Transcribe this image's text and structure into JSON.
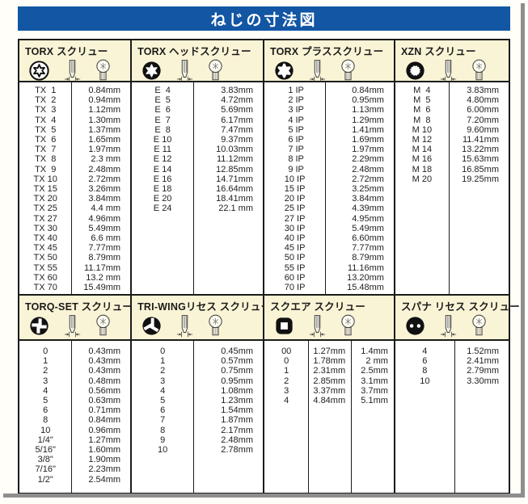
{
  "page": {
    "title": "ねじの寸法図"
  },
  "colors": {
    "banner_blue": "#1256a4",
    "header_cream": "#faf4d6",
    "border": "#1b1b1b",
    "unit": "mm"
  },
  "panels": {
    "torx": {
      "title": "TORX スクリュー",
      "icons": [
        "torx-recess-face-icon",
        "screw-side-view-icon",
        "screw-head-view-icon"
      ],
      "rows": [
        [
          "TX  1",
          "0.84mm"
        ],
        [
          "TX  2",
          "0.94mm"
        ],
        [
          "TX  3",
          "1.12mm"
        ],
        [
          "TX  4",
          "1.30mm"
        ],
        [
          "TX  5",
          "1.37mm"
        ],
        [
          "TX  6",
          "1.65mm"
        ],
        [
          "TX  7",
          "1.97mm"
        ],
        [
          "TX  8",
          "2.3 mm"
        ],
        [
          "TX  9",
          "2.48mm"
        ],
        [
          "TX 10",
          "2.72mm"
        ],
        [
          "TX 15",
          "3.26mm"
        ],
        [
          "TX 20",
          "3.84mm"
        ],
        [
          "TX 25",
          "4.4 mm"
        ],
        [
          "TX 27",
          "4.96mm"
        ],
        [
          "TX 30",
          "5.49mm"
        ],
        [
          "TX 40",
          "6.6 mm"
        ],
        [
          "TX 45",
          "7.77mm"
        ],
        [
          "TX 50",
          "8.79mm"
        ],
        [
          "TX 55",
          "11.17mm"
        ],
        [
          "TX 60",
          "13.2 mm"
        ],
        [
          "TX 70",
          "15.49mm"
        ]
      ]
    },
    "torx_head": {
      "title": "TORX ヘッドスクリュー",
      "icons": [
        "torx-socket-face-icon",
        "screw-side-view-icon",
        "screw-head-view-icon"
      ],
      "rows": [
        [
          "E  4",
          "3.83mm"
        ],
        [
          "E  5",
          "4.72mm"
        ],
        [
          "E  6",
          "5.69mm"
        ],
        [
          "E  7",
          "6.17mm"
        ],
        [
          "E  8",
          "7.47mm"
        ],
        [
          "E 10",
          "9.37mm"
        ],
        [
          "E 11",
          "10.03mm"
        ],
        [
          "E 12",
          "11.12mm"
        ],
        [
          "E 14",
          "12.85mm"
        ],
        [
          "E 16",
          "14.71mm"
        ],
        [
          "E 18",
          "16.64mm"
        ],
        [
          "E 20",
          "18.41mm"
        ],
        [
          "E 24",
          "22.1 mm"
        ]
      ]
    },
    "torx_plus": {
      "title": "TORX プラススクリュー",
      "icons": [
        "torx-plus-face-icon",
        "screw-side-view-icon",
        "screw-head-view-icon"
      ],
      "rows": [
        [
          " 1 IP",
          "0.84mm"
        ],
        [
          " 2 IP",
          "0.95mm"
        ],
        [
          " 3 IP",
          "1.13mm"
        ],
        [
          " 4 IP",
          "1.29mm"
        ],
        [
          " 5 IP",
          "1.41mm"
        ],
        [
          " 6 IP",
          "1.69mm"
        ],
        [
          " 7 IP",
          "1.97mm"
        ],
        [
          " 8 IP",
          "2.29mm"
        ],
        [
          " 9 IP",
          "2.48mm"
        ],
        [
          "10 IP",
          "2.72mm"
        ],
        [
          "15 IP",
          "3.25mm"
        ],
        [
          "20 IP",
          "3.84mm"
        ],
        [
          "25 IP",
          "4.39mm"
        ],
        [
          "27 IP",
          "4.95mm"
        ],
        [
          "30 IP",
          "5.49mm"
        ],
        [
          "40 IP",
          "6.60mm"
        ],
        [
          "45 IP",
          "7.77mm"
        ],
        [
          "50 IP",
          "8.79mm"
        ],
        [
          "55 IP",
          "11.16mm"
        ],
        [
          "60 IP",
          "13.20mm"
        ],
        [
          "70 IP",
          "15.48mm"
        ]
      ]
    },
    "xzn": {
      "title": "XZN スクリュー",
      "icons": [
        "xzn-spline-face-icon",
        "screw-side-view-icon",
        "screw-head-view-icon"
      ],
      "rows": [
        [
          "M  4",
          "3.83mm"
        ],
        [
          "M  5",
          "4.80mm"
        ],
        [
          "M  6",
          "6.00mm"
        ],
        [
          "M  8",
          "7.20mm"
        ],
        [
          "M 10",
          "9.60mm"
        ],
        [
          "M 12",
          "11.41mm"
        ],
        [
          "M 14",
          "13.22mm"
        ],
        [
          "M 16",
          "15.63mm"
        ],
        [
          "M 18",
          "16.85mm"
        ],
        [
          "M 20",
          "19.25mm"
        ]
      ]
    },
    "torq_set": {
      "title": "TORQ-SET スクリュー",
      "icons": [
        "torq-set-face-icon",
        "screw-side-view-icon",
        "screw-head-view-icon"
      ],
      "rows": [
        [
          "0",
          "0.43mm"
        ],
        [
          "1",
          "0.43mm"
        ],
        [
          "2",
          "0.43mm"
        ],
        [
          "3",
          "0.48mm"
        ],
        [
          "4",
          "0.56mm"
        ],
        [
          "5",
          "0.63mm"
        ],
        [
          "6",
          "0.71mm"
        ],
        [
          "8",
          "0.84mm"
        ],
        [
          "10",
          "0.96mm"
        ],
        [
          "1/4\"",
          "1.27mm"
        ],
        [
          "5/16\"",
          "1.60mm"
        ],
        [
          "3/8\"",
          "1.90mm"
        ],
        [
          "7/16\"",
          "2.23mm"
        ],
        [
          "1/2\"",
          "2.54mm"
        ]
      ]
    },
    "tri_wing": {
      "title": "TRI-WINGリセス スクリュー",
      "icons": [
        "tri-wing-face-icon",
        "screw-side-view-icon",
        "screw-head-view-icon"
      ],
      "rows": [
        [
          "0",
          "0.45mm"
        ],
        [
          "1",
          "0.57mm"
        ],
        [
          "2",
          "0.75mm"
        ],
        [
          "3",
          "0.95mm"
        ],
        [
          "4",
          "1.08mm"
        ],
        [
          "5",
          "1.23mm"
        ],
        [
          "6",
          "1.54mm"
        ],
        [
          "7",
          "1.87mm"
        ],
        [
          "8",
          "2.17mm"
        ],
        [
          "9",
          "2.48mm"
        ],
        [
          "10",
          "2.78mm"
        ]
      ]
    },
    "square": {
      "title": "スクエア スクリュー",
      "icons": [
        "square-recess-face-icon",
        "screw-side-view-icon",
        "screw-head-view-icon"
      ],
      "rows": [
        [
          "00",
          "1.27mm",
          "1.4mm"
        ],
        [
          "0",
          "1.78mm",
          "2 mm"
        ],
        [
          "1",
          "2.31mm",
          "2.5mm"
        ],
        [
          "2",
          "2.85mm",
          "3.1mm"
        ],
        [
          "3",
          "3.37mm",
          "3.7mm"
        ],
        [
          "4",
          "4.84mm",
          "5.1mm"
        ]
      ]
    },
    "spanner": {
      "title": "スパナ リセス スクリュー",
      "icons": [
        "spanner-recess-face-icon",
        "screw-side-view-icon",
        "screw-head-view-icon"
      ],
      "rows": [
        [
          "4",
          "1.52mm"
        ],
        [
          "6",
          "2.41mm"
        ],
        [
          "8",
          "2.79mm"
        ],
        [
          "10",
          "3.30mm"
        ]
      ]
    }
  }
}
